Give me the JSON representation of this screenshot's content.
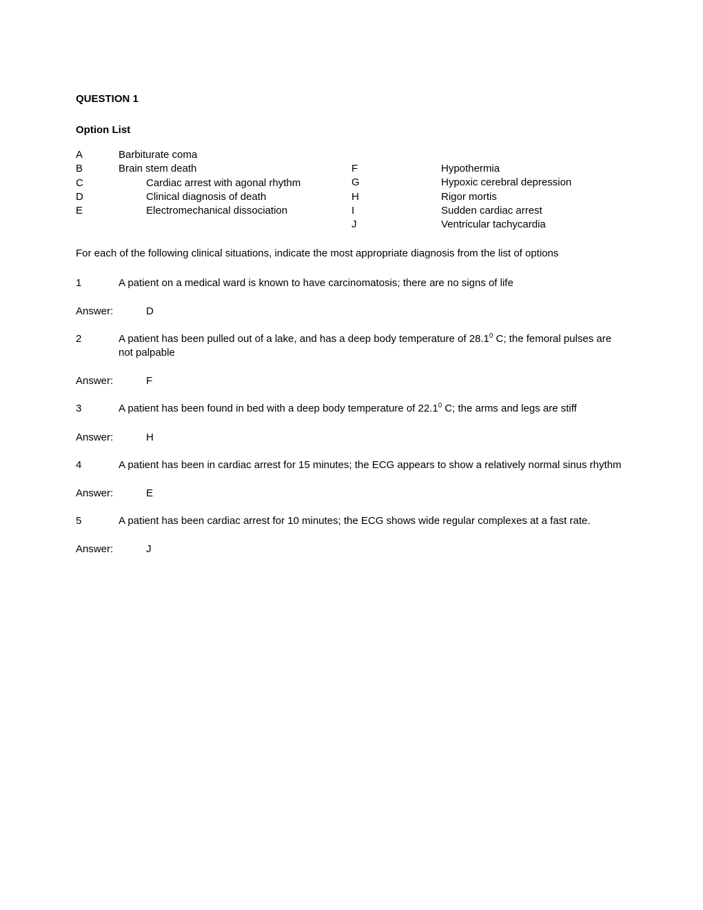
{
  "title": "QUESTION 1",
  "optionListTitle": "Option List",
  "optionsLeft": [
    {
      "letter": "A",
      "text": "Barbiturate coma",
      "indent": false
    },
    {
      "letter": "B",
      "text": "Brain stem death",
      "indent": false
    },
    {
      "letter": "C",
      "text": "Cardiac arrest with agonal rhythm",
      "indent": true
    },
    {
      "letter": "D",
      "text": "Clinical diagnosis of death",
      "indent": true
    },
    {
      "letter": "E",
      "text": "Electromechanical dissociation",
      "indent": true
    }
  ],
  "optionsRight": [
    {
      "letter": "F",
      "text": "Hypothermia"
    },
    {
      "letter": "G",
      "text": "Hypoxic cerebral depression"
    },
    {
      "letter": "H",
      "text": "Rigor mortis"
    },
    {
      "letter": "I",
      "text": "Sudden cardiac arrest"
    },
    {
      "letter": "J",
      "text": "Ventricular tachycardia"
    }
  ],
  "instruction": "For each of the following clinical situations, indicate the most appropriate diagnosis from the list of options",
  "questions": [
    {
      "num": "1",
      "text": "A patient on a medical ward is known to have carcinomatosis; there are no signs of life",
      "answer": "D"
    },
    {
      "num": "2",
      "text": "A patient has been pulled out of a lake, and has a deep body temperature of 28.1⁰ C; the femoral pulses are not palpable",
      "answer": "F"
    },
    {
      "num": "3",
      "text": "A patient has been found in bed with a deep body temperature of 22.1⁰ C; the arms and legs are stiff",
      "answer": "H"
    },
    {
      "num": "4",
      "text": "A patient has been in cardiac arrest for 15 minutes; the ECG appears to show a relatively normal sinus rhythm",
      "answer": "E"
    },
    {
      "num": "5",
      "text": "A patient has been cardiac arrest for 10 minutes; the ECG shows wide regular complexes at a fast rate.",
      "answer": "J"
    }
  ],
  "answerLabel": "Answer:"
}
